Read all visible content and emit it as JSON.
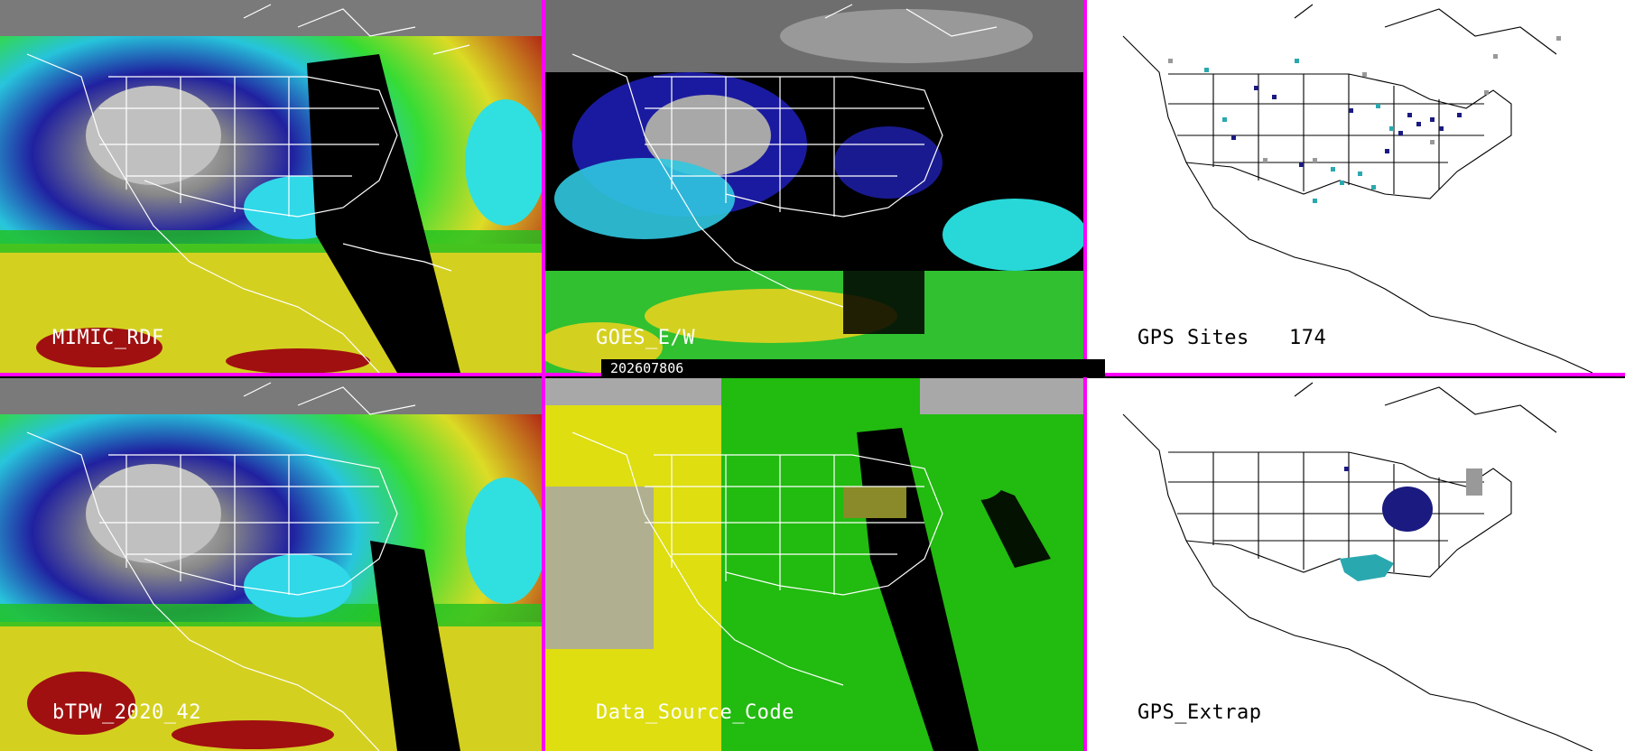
{
  "colors": {
    "divider": "#ff00ff",
    "background": "#000000",
    "map_line": "#ffffff",
    "map_line_white_panel": "#000000"
  },
  "timestamp": "202607806",
  "panels": [
    {
      "id": "mimic-rdf",
      "label": "MIMIC_RDF",
      "style": "tpw"
    },
    {
      "id": "goes-ew",
      "label": "GOES_E/W",
      "style": "goes"
    },
    {
      "id": "gps-sites",
      "label": "GPS Sites",
      "count": "174",
      "style": "gps"
    },
    {
      "id": "btpw",
      "label": "bTPW_2020_42",
      "style": "tpw"
    },
    {
      "id": "data-source-code",
      "label": "Data_Source_Code",
      "style": "dsc"
    },
    {
      "id": "gps-extrap",
      "label": "GPS_Extrap",
      "style": "gpsx"
    }
  ]
}
